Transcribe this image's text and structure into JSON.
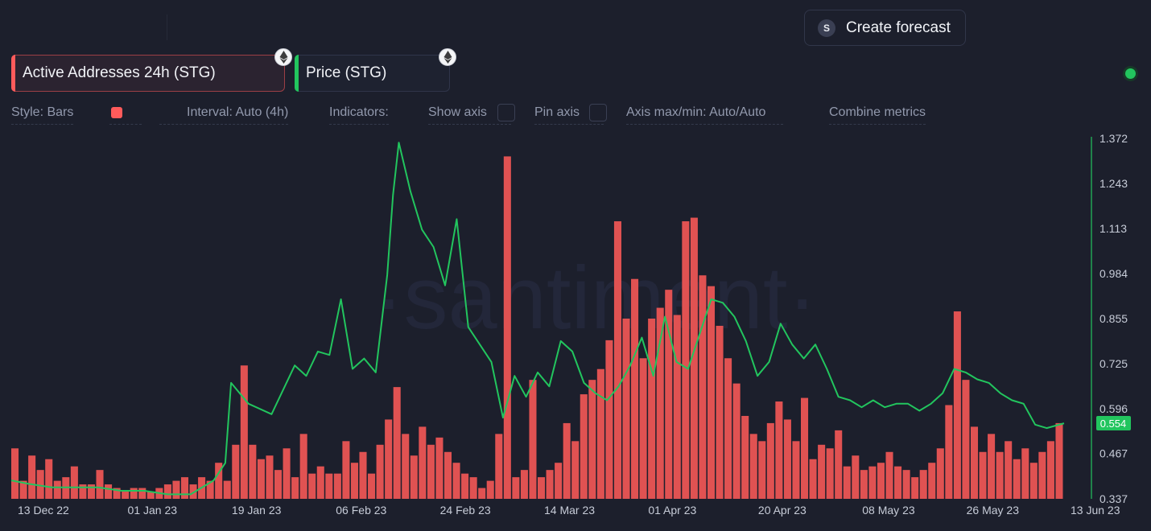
{
  "header": {
    "forecast_icon": "S",
    "forecast_label": "Create forecast"
  },
  "metrics": [
    {
      "label": "Active Addresses 24h (STG)",
      "color": "#ff5b5b",
      "chain_icon": "ethereum-icon"
    },
    {
      "label": "Price (STG)",
      "color": "#22c55e",
      "chain_icon": "ethereum-icon"
    }
  ],
  "status": {
    "color": "#22c55e"
  },
  "options": {
    "style": "Style: Bars",
    "interval": "Interval: Auto (4h)",
    "indicators": "Indicators:",
    "show_axis": "Show axis",
    "pin_axis": "Pin axis",
    "axis_maxmin": "Axis max/min: Auto/Auto",
    "combine": "Combine metrics"
  },
  "chart_data": {
    "type": "bar",
    "watermark": "·santiment·",
    "x_labels": [
      "13 Dec 22",
      "01 Jan 23",
      "19 Jan 23",
      "06 Feb 23",
      "24 Feb 23",
      "14 Mar 23",
      "01 Apr 23",
      "20 Apr 23",
      "08 May 23",
      "26 May 23",
      "13 Jun 23"
    ],
    "price_axis": {
      "ticks": [
        "1.372",
        "1.243",
        "1.113",
        "0.984",
        "0.855",
        "0.725",
        "0.596",
        "0.467",
        "0.337"
      ],
      "ylim": [
        0.337,
        1.372
      ],
      "current": "0.554",
      "color": "#22c55e"
    },
    "series": [
      {
        "name": "Active Addresses 24h (STG)",
        "type": "bar",
        "color": "#e05252",
        "relative_values": [
          0.14,
          0.05,
          0.12,
          0.08,
          0.11,
          0.05,
          0.06,
          0.09,
          0.04,
          0.04,
          0.08,
          0.04,
          0.03,
          0.02,
          0.03,
          0.03,
          0.02,
          0.03,
          0.04,
          0.05,
          0.06,
          0.04,
          0.06,
          0.05,
          0.1,
          0.05,
          0.15,
          0.37,
          0.15,
          0.11,
          0.12,
          0.08,
          0.14,
          0.06,
          0.18,
          0.07,
          0.09,
          0.07,
          0.07,
          0.16,
          0.1,
          0.13,
          0.07,
          0.15,
          0.22,
          0.31,
          0.18,
          0.12,
          0.2,
          0.15,
          0.17,
          0.13,
          0.1,
          0.07,
          0.06,
          0.03,
          0.05,
          0.18,
          0.95,
          0.06,
          0.08,
          0.33,
          0.06,
          0.08,
          0.1,
          0.21,
          0.16,
          0.29,
          0.33,
          0.36,
          0.44,
          0.77,
          0.5,
          0.61,
          0.39,
          0.5,
          0.53,
          0.58,
          0.51,
          0.77,
          0.78,
          0.62,
          0.59,
          0.48,
          0.39,
          0.32,
          0.23,
          0.18,
          0.16,
          0.21,
          0.27,
          0.22,
          0.16,
          0.28,
          0.11,
          0.15,
          0.14,
          0.19,
          0.09,
          0.12,
          0.08,
          0.09,
          0.1,
          0.13,
          0.09,
          0.08,
          0.06,
          0.08,
          0.1,
          0.14,
          0.26,
          0.52,
          0.33,
          0.2,
          0.13,
          0.18,
          0.13,
          0.16,
          0.11,
          0.14,
          0.1,
          0.13,
          0.16,
          0.21
        ]
      },
      {
        "name": "Price (STG)",
        "type": "line",
        "color": "#22c55e",
        "x": [
          "13 Dec 22",
          "16 Dec 22",
          "20 Dec 22",
          "24 Dec 22",
          "28 Dec 22",
          "01 Jan 23",
          "05 Jan 23",
          "09 Jan 23",
          "13 Jan 23",
          "17 Jan 23",
          "19 Jan 23",
          "20 Jan 23",
          "23 Jan 23",
          "27 Jan 23",
          "31 Jan 23",
          "02 Feb 23",
          "04 Feb 23",
          "06 Feb 23",
          "08 Feb 23",
          "10 Feb 23",
          "12 Feb 23",
          "14 Feb 23",
          "16 Feb 23",
          "17 Feb 23",
          "18 Feb 23",
          "20 Feb 23",
          "22 Feb 23",
          "24 Feb 23",
          "26 Feb 23",
          "28 Feb 23",
          "02 Mar 23",
          "04 Mar 23",
          "06 Mar 23",
          "08 Mar 23",
          "10 Mar 23",
          "12 Mar 23",
          "14 Mar 23",
          "16 Mar 23",
          "18 Mar 23",
          "20 Mar 23",
          "22 Mar 23",
          "24 Mar 23",
          "26 Mar 23",
          "28 Mar 23",
          "30 Mar 23",
          "01 Apr 23",
          "03 Apr 23",
          "05 Apr 23",
          "07 Apr 23",
          "09 Apr 23",
          "11 Apr 23",
          "13 Apr 23",
          "15 Apr 23",
          "17 Apr 23",
          "19 Apr 23",
          "21 Apr 23",
          "23 Apr 23",
          "25 Apr 23",
          "27 Apr 23",
          "29 Apr 23",
          "01 May 23",
          "03 May 23",
          "05 May 23",
          "07 May 23",
          "09 May 23",
          "11 May 23",
          "13 May 23",
          "15 May 23",
          "17 May 23",
          "19 May 23",
          "21 May 23",
          "23 May 23",
          "25 May 23",
          "27 May 23",
          "29 May 23",
          "31 May 23",
          "02 Jun 23",
          "04 Jun 23",
          "06 Jun 23",
          "08 Jun 23",
          "10 Jun 23",
          "13 Jun 23"
        ],
        "values": [
          0.39,
          0.38,
          0.37,
          0.37,
          0.37,
          0.36,
          0.36,
          0.35,
          0.35,
          0.39,
          0.44,
          0.67,
          0.61,
          0.58,
          0.72,
          0.69,
          0.76,
          0.75,
          0.91,
          0.71,
          0.74,
          0.7,
          0.98,
          1.21,
          1.36,
          1.22,
          1.11,
          1.06,
          0.95,
          1.14,
          0.83,
          0.78,
          0.73,
          0.57,
          0.69,
          0.63,
          0.7,
          0.66,
          0.79,
          0.76,
          0.67,
          0.64,
          0.62,
          0.66,
          0.72,
          0.8,
          0.69,
          0.86,
          0.73,
          0.71,
          0.81,
          0.91,
          0.9,
          0.86,
          0.79,
          0.69,
          0.73,
          0.84,
          0.78,
          0.74,
          0.78,
          0.71,
          0.63,
          0.62,
          0.6,
          0.62,
          0.6,
          0.61,
          0.61,
          0.59,
          0.61,
          0.64,
          0.71,
          0.7,
          0.68,
          0.67,
          0.64,
          0.62,
          0.61,
          0.55,
          0.54,
          0.554
        ]
      }
    ]
  }
}
